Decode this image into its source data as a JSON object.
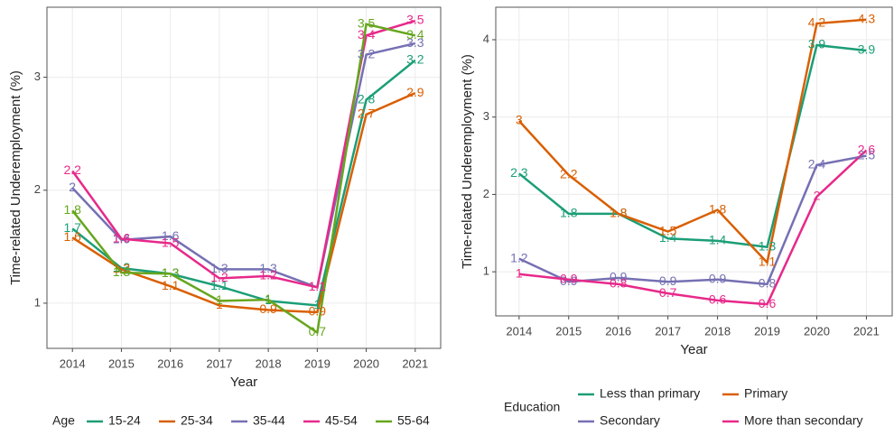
{
  "chart_data": [
    {
      "type": "line",
      "xlabel": "Year",
      "ylabel": "Time-related Underemployment (%)",
      "legend_title": "Age",
      "x": [
        2014,
        2015,
        2016,
        2017,
        2018,
        2019,
        2020,
        2021
      ],
      "xlim": [
        2013.48,
        2021.52
      ],
      "xticks": [
        2014,
        2015,
        2016,
        2017,
        2018,
        2019,
        2020,
        2021
      ],
      "ylim": [
        0.6,
        3.62
      ],
      "yticks": [
        1,
        2,
        3
      ],
      "grid": true,
      "series": [
        {
          "name": "15-24",
          "color": "#1b9e77",
          "values": [
            1.66,
            1.31,
            1.26,
            1.15,
            1.02,
            0.98,
            2.8,
            3.15
          ],
          "value_labels": [
            "1.7",
            "1.3",
            "1.3",
            "1.1",
            "1",
            "1",
            "2.8",
            "3.2"
          ]
        },
        {
          "name": "25-34",
          "color": "#d95f02",
          "values": [
            1.58,
            1.3,
            1.15,
            0.98,
            0.94,
            0.92,
            2.67,
            2.86
          ],
          "value_labels": [
            "1.6",
            "1.3",
            "1.1",
            "1",
            "0.9",
            "0.9",
            "2.7",
            "2.9"
          ]
        },
        {
          "name": "35-44",
          "color": "#7570b3",
          "values": [
            2.02,
            1.56,
            1.59,
            1.3,
            1.3,
            1.14,
            3.2,
            3.3
          ],
          "value_labels": [
            "2",
            "1.6",
            "1.6",
            "1.3",
            "1.3",
            "1.1",
            "3.2",
            "3.3"
          ]
        },
        {
          "name": "45-54",
          "color": "#e7298a",
          "values": [
            2.17,
            1.57,
            1.53,
            1.22,
            1.24,
            1.14,
            3.37,
            3.5
          ],
          "value_labels": [
            "2.2",
            "1.6",
            "1.5",
            "1.2",
            "1.2",
            "1.1",
            "3.4",
            "3.5"
          ]
        },
        {
          "name": "55-64",
          "color": "#66a61e",
          "values": [
            1.82,
            1.27,
            1.26,
            1.02,
            1.03,
            0.74,
            3.47,
            3.37
          ],
          "value_labels": [
            "1.8",
            "1.3",
            "1.3",
            "1",
            "1",
            "0.7",
            "3.5",
            "3.4"
          ]
        }
      ]
    },
    {
      "type": "line",
      "xlabel": "Year",
      "ylabel": "Time-related Underemployment (%)",
      "legend_title": "Education",
      "x": [
        2014,
        2015,
        2016,
        2017,
        2018,
        2019,
        2020,
        2021
      ],
      "xlim": [
        2013.53,
        2021.52
      ],
      "xticks": [
        2014,
        2015,
        2016,
        2017,
        2018,
        2019,
        2020,
        2021
      ],
      "ylim": [
        0.43,
        4.42
      ],
      "yticks": [
        1,
        2,
        3,
        4
      ],
      "grid": true,
      "series": [
        {
          "name": "Less than primary",
          "color": "#1b9e77",
          "values": [
            2.27,
            1.75,
            1.75,
            1.43,
            1.4,
            1.32,
            3.93,
            3.86
          ],
          "value_labels": [
            "2.3",
            "1.8",
            "1.8",
            "1.4",
            "1.4",
            "1.3",
            "3.9",
            "3.9"
          ]
        },
        {
          "name": "Primary",
          "color": "#d95f02",
          "values": [
            2.95,
            2.25,
            1.75,
            1.52,
            1.8,
            1.12,
            4.21,
            4.26
          ],
          "value_labels": [
            "3",
            "2.2",
            "1.8",
            "1.5",
            "1.8",
            "1.1",
            "4.2",
            "4.3"
          ]
        },
        {
          "name": "Secondary",
          "color": "#7570b3",
          "values": [
            1.17,
            0.87,
            0.92,
            0.87,
            0.9,
            0.84,
            2.38,
            2.5
          ],
          "value_labels": [
            "1.2",
            "0.9",
            "0.9",
            "0.9",
            "0.9",
            "0.8",
            "2.4",
            "2.5"
          ]
        },
        {
          "name": "More than secondary",
          "color": "#e7298a",
          "values": [
            0.97,
            0.9,
            0.84,
            0.72,
            0.63,
            0.58,
            1.97,
            2.57
          ],
          "value_labels": [
            "1",
            "0.9",
            "0.8",
            "0.7",
            "0.6",
            "0.6",
            "2",
            "2.6"
          ]
        }
      ]
    }
  ]
}
